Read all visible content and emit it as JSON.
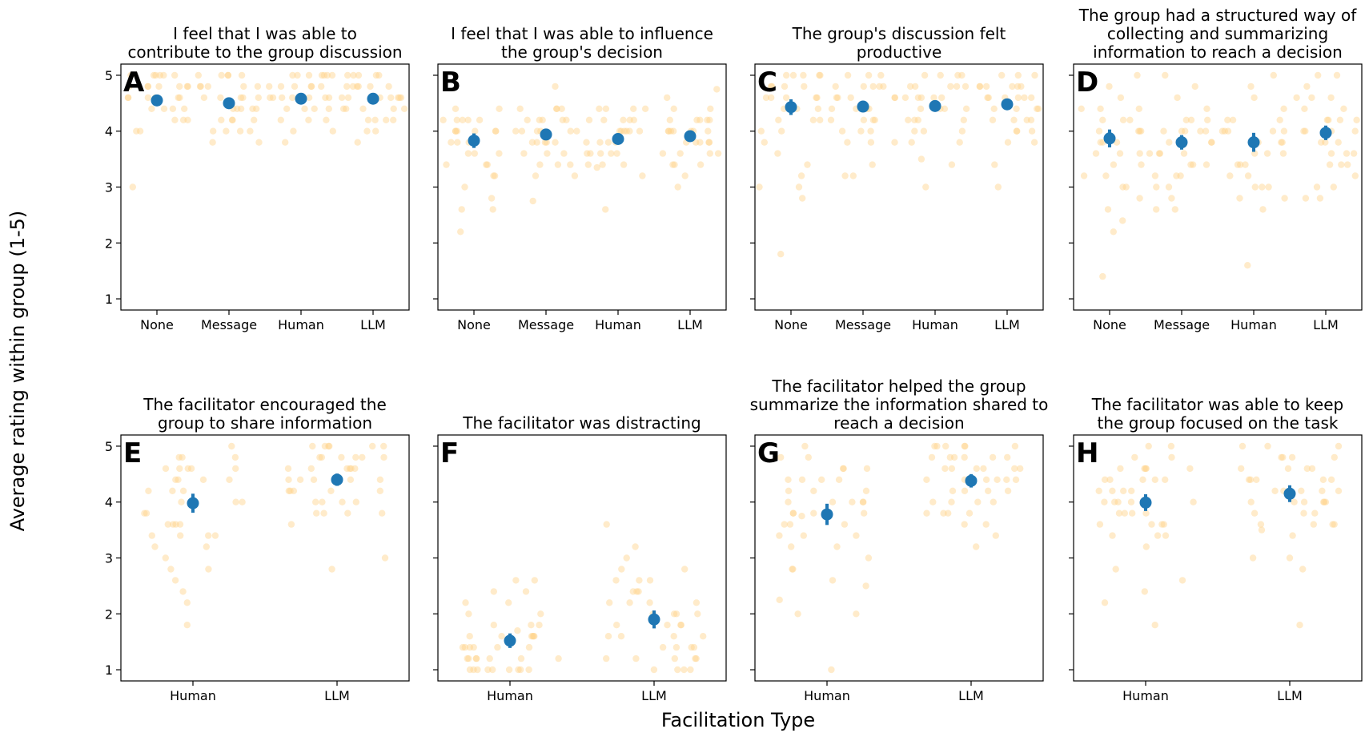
{
  "figure": {
    "ylabel": "Average rating within group (1-5)",
    "xlabel": "Facilitation Type",
    "colors": {
      "points": "#ffd38a",
      "mean": "#1f77b4"
    }
  },
  "chart_data": [
    {
      "type": "scatter",
      "letter": "A",
      "title": [
        "I feel that I was able to",
        "contribute to the group discussion"
      ],
      "categories": [
        "None",
        "Message",
        "Human",
        "LLM"
      ],
      "yticks": [
        "1",
        "2",
        "3",
        "4",
        "5"
      ],
      "ylim": [
        0.8,
        5.2
      ],
      "means": [
        4.55,
        4.5,
        4.58,
        4.58
      ],
      "errors": [
        0.07,
        0.07,
        0.07,
        0.06
      ],
      "points": [
        [
          4,
          4.2,
          4.4,
          4.4,
          4.6,
          4.6,
          4.6,
          4.6,
          4.8,
          4.8,
          4.8,
          4.8,
          5,
          5,
          5,
          5,
          4.2,
          4.4,
          4.6,
          4.8,
          4.8,
          5,
          5,
          4.4,
          4.6,
          4.8,
          4,
          4.2,
          3
        ],
        [
          3.8,
          4,
          4,
          4.2,
          4.2,
          4.4,
          4.4,
          4.4,
          4.6,
          4.6,
          4.6,
          4.8,
          4.8,
          4.8,
          5,
          5,
          5,
          4,
          4.2,
          4.4,
          4.6,
          4.8,
          5,
          3.8,
          4,
          4.4,
          4.6,
          5,
          4.2,
          4.8
        ],
        [
          3.8,
          4,
          4.2,
          4.2,
          4.4,
          4.4,
          4.6,
          4.6,
          4.6,
          4.6,
          4.8,
          4.8,
          4.8,
          5,
          5,
          5,
          5,
          4.4,
          4.6,
          4.8,
          5,
          4.2,
          4.6,
          4.8,
          5,
          4,
          4.4,
          4.6,
          4.8,
          5
        ],
        [
          3.8,
          4,
          4.2,
          4.2,
          4.4,
          4.4,
          4.4,
          4.6,
          4.6,
          4.6,
          4.6,
          4.8,
          4.8,
          4.8,
          4.8,
          5,
          5,
          5,
          4.2,
          4.4,
          4.6,
          4.8,
          5,
          4,
          4.4,
          4.6,
          4.8,
          5,
          4.2,
          4.6
        ]
      ]
    },
    {
      "type": "scatter",
      "letter": "B",
      "title": [
        "I feel that I was able to influence",
        "the group's decision"
      ],
      "categories": [
        "None",
        "Message",
        "Human",
        "LLM"
      ],
      "yticks": [
        "1",
        "2",
        "3",
        "4",
        "5"
      ],
      "ylim": [
        0.8,
        5.2
      ],
      "means": [
        3.83,
        3.94,
        3.86,
        3.91
      ],
      "errors": [
        0.13,
        0.1,
        0.1,
        0.09
      ],
      "points": [
        [
          2.2,
          2.6,
          2.6,
          2.8,
          3,
          3.2,
          3.2,
          3.4,
          3.4,
          3.6,
          3.6,
          3.8,
          3.8,
          4,
          4,
          4,
          4,
          4.2,
          4.2,
          4.2,
          4.4,
          4.4,
          3.6,
          3.8,
          4,
          4.2,
          3.4,
          3.8,
          4,
          4.2
        ],
        [
          2.75,
          3.2,
          3.2,
          3.4,
          3.4,
          3.6,
          3.6,
          3.8,
          3.8,
          3.8,
          4,
          4,
          4,
          4,
          4.2,
          4.2,
          4.2,
          4.4,
          4.4,
          4.4,
          4.8,
          3.6,
          3.8,
          4,
          4.2,
          4.4,
          3.4,
          3.8,
          4,
          4.2
        ],
        [
          2.6,
          3.2,
          3.4,
          3.4,
          3.6,
          3.6,
          3.6,
          3.8,
          3.8,
          3.8,
          4,
          4,
          4,
          4,
          4.2,
          4.2,
          4.2,
          4.4,
          4.4,
          3.35,
          3.6,
          3.8,
          4,
          4.2,
          4.4,
          3.4,
          3.6,
          4,
          4.2,
          4.4
        ],
        [
          3,
          3.2,
          3.4,
          3.4,
          3.6,
          3.6,
          3.6,
          3.8,
          3.8,
          3.8,
          4,
          4,
          4,
          4,
          4,
          4.2,
          4.2,
          4.2,
          4.4,
          4.4,
          4.6,
          4.75,
          3.6,
          3.8,
          4,
          4.2,
          3.4,
          3.8,
          4,
          4.2
        ]
      ]
    },
    {
      "type": "scatter",
      "letter": "C",
      "title": [
        "The group's discussion felt",
        "productive"
      ],
      "categories": [
        "None",
        "Message",
        "Human",
        "LLM"
      ],
      "yticks": [
        "1",
        "2",
        "3",
        "4",
        "5"
      ],
      "ylim": [
        0.8,
        5.2
      ],
      "means": [
        4.43,
        4.44,
        4.45,
        4.48
      ],
      "errors": [
        0.14,
        0.09,
        0.09,
        0.08
      ],
      "points": [
        [
          1.8,
          2.8,
          3,
          3,
          3.2,
          3.4,
          3.6,
          3.8,
          4,
          4,
          4.2,
          4.2,
          4.4,
          4.4,
          4.6,
          4.6,
          4.6,
          4.8,
          4.8,
          4.8,
          5,
          5,
          5,
          5,
          4.4,
          4.6,
          4.8,
          5,
          4.2,
          4.6
        ],
        [
          3.2,
          3.2,
          3.4,
          3.8,
          3.8,
          4,
          4,
          4.2,
          4.2,
          4.4,
          4.4,
          4.4,
          4.6,
          4.6,
          4.6,
          4.8,
          4.8,
          4.8,
          5,
          5,
          4,
          4.2,
          4.6,
          4.8,
          5,
          3.8,
          4.4,
          4.6,
          4.8,
          4.2
        ],
        [
          3,
          3.4,
          3.5,
          3.8,
          4,
          4,
          4.2,
          4.2,
          4.4,
          4.4,
          4.4,
          4.6,
          4.6,
          4.6,
          4.8,
          4.8,
          4.8,
          5,
          5,
          5,
          4,
          4.2,
          4.6,
          4.8,
          5,
          3.8,
          4.4,
          4.6,
          4.8,
          4.2
        ],
        [
          3,
          3.4,
          3.8,
          3.8,
          4,
          4,
          4.2,
          4.2,
          4.4,
          4.4,
          4.4,
          4.6,
          4.6,
          4.6,
          4.8,
          4.8,
          4.8,
          4.8,
          5,
          5,
          5,
          4,
          4.2,
          4.6,
          4.8,
          4.4,
          4.6,
          4.8,
          4.2,
          4.6
        ]
      ]
    },
    {
      "type": "scatter",
      "letter": "D",
      "title": [
        "The group had a structured way of",
        "collecting and summarizing",
        "information to reach a decision"
      ],
      "categories": [
        "None",
        "Message",
        "Human",
        "LLM"
      ],
      "yticks": [
        "1",
        "2",
        "3",
        "4",
        "5"
      ],
      "ylim": [
        0.8,
        5.2
      ],
      "means": [
        3.87,
        3.8,
        3.8,
        3.97
      ],
      "errors": [
        0.16,
        0.13,
        0.17,
        0.13
      ],
      "points": [
        [
          1.4,
          2.2,
          2.4,
          2.6,
          2.8,
          3,
          3,
          3.2,
          3.4,
          3.4,
          3.6,
          3.6,
          3.8,
          3.8,
          4,
          4,
          4,
          4.2,
          4.2,
          4.4,
          4.4,
          4.6,
          4.8,
          5,
          3.6,
          4,
          4.2,
          3.2,
          3.8,
          4.4
        ],
        [
          2.6,
          2.6,
          2.8,
          3,
          3,
          3.2,
          3.2,
          3.4,
          3.4,
          3.6,
          3.6,
          3.8,
          3.8,
          4,
          4,
          4,
          4.2,
          4.2,
          4.4,
          4.6,
          4.8,
          5,
          3.4,
          3.6,
          3.8,
          4,
          4.2,
          3.2,
          3.6,
          4
        ],
        [
          1.6,
          2.6,
          2.8,
          3,
          3,
          3.2,
          3.2,
          3.4,
          3.4,
          3.6,
          3.6,
          3.8,
          3.8,
          4,
          4,
          4,
          4.2,
          4.2,
          4.4,
          4.6,
          4.8,
          5,
          2.8,
          3.4,
          3.6,
          4,
          4.2,
          3,
          3.8,
          4
        ],
        [
          2.8,
          2.8,
          3,
          3,
          3.2,
          3.4,
          3.4,
          3.6,
          3.6,
          3.8,
          3.8,
          4,
          4,
          4,
          4.2,
          4.2,
          4.4,
          4.4,
          4.6,
          4.6,
          4.8,
          5,
          5,
          3.6,
          4,
          4.2,
          4.6,
          3.4,
          3.8,
          4.2
        ]
      ]
    },
    {
      "type": "scatter",
      "letter": "E",
      "title": [
        "The facilitator encouraged the",
        "group to share information"
      ],
      "categories": [
        "Human",
        "LLM"
      ],
      "yticks": [
        "1",
        "2",
        "3",
        "4",
        "5"
      ],
      "ylim": [
        0.8,
        5.2
      ],
      "means": [
        3.98,
        4.4
      ],
      "errors": [
        0.17,
        0.11
      ],
      "points": [
        [
          1.8,
          2.2,
          2.4,
          2.6,
          2.8,
          2.8,
          3,
          3.2,
          3.2,
          3.4,
          3.4,
          3.4,
          3.6,
          3.6,
          3.6,
          3.8,
          3.8,
          4,
          4,
          4,
          4,
          4.2,
          4.2,
          4.4,
          4.4,
          4.4,
          4.6,
          4.6,
          4.6,
          4.8,
          4.8,
          4.8,
          5,
          3.6,
          4,
          4.4,
          4.6,
          3.4,
          4.2,
          4.6
        ],
        [
          2.8,
          3,
          3.6,
          3.8,
          3.8,
          3.8,
          4,
          4,
          4,
          4.2,
          4.2,
          4.2,
          4.2,
          4.4,
          4.4,
          4.4,
          4.4,
          4.6,
          4.6,
          4.6,
          4.6,
          4.8,
          4.8,
          4.8,
          4.8,
          5,
          5,
          5,
          5,
          5,
          4,
          4.2,
          4.4,
          4.6,
          4.8,
          3.8,
          4.4,
          4.6,
          4.8,
          5
        ]
      ]
    },
    {
      "type": "scatter",
      "letter": "F",
      "title": [
        "The facilitator was distracting"
      ],
      "categories": [
        "Human",
        "LLM"
      ],
      "yticks": [
        "1",
        "2",
        "3",
        "4",
        "5"
      ],
      "ylim": [
        0.8,
        5.2
      ],
      "means": [
        1.52,
        1.9
      ],
      "errors": [
        0.13,
        0.16
      ],
      "points": [
        [
          1,
          1,
          1,
          1,
          1,
          1,
          1,
          1,
          1,
          1.2,
          1.2,
          1.2,
          1.2,
          1.2,
          1.2,
          1.2,
          1.4,
          1.4,
          1.4,
          1.4,
          1.4,
          1.4,
          1.6,
          1.6,
          1.6,
          1.6,
          1.6,
          1.6,
          1.7,
          1.8,
          1.8,
          1.8,
          2,
          2,
          2.2,
          2.2,
          2.4,
          2.4,
          2.6,
          2.6
        ],
        [
          1,
          1,
          1,
          1,
          1.2,
          1.2,
          1.2,
          1.2,
          1.2,
          1.4,
          1.4,
          1.4,
          1.4,
          1.6,
          1.6,
          1.6,
          1.6,
          1.8,
          1.8,
          1.8,
          1.8,
          2,
          2,
          2,
          2,
          2.2,
          2.2,
          2.2,
          2.4,
          2.4,
          2.4,
          2.6,
          2.6,
          2.6,
          2.8,
          2.8,
          3,
          3.2,
          3.6,
          2.2
        ]
      ]
    },
    {
      "type": "scatter",
      "letter": "G",
      "title": [
        "The facilitator helped the group",
        "summarize the information shared to",
        "reach a decision"
      ],
      "categories": [
        "Human",
        "LLM"
      ],
      "yticks": [
        "1",
        "2",
        "3",
        "4",
        "5"
      ],
      "ylim": [
        0.8,
        5.2
      ],
      "means": [
        3.78,
        4.38
      ],
      "errors": [
        0.19,
        0.12
      ],
      "points": [
        [
          1,
          2,
          2,
          2.25,
          2.5,
          2.6,
          2.8,
          2.8,
          3,
          3.2,
          3.2,
          3.4,
          3.4,
          3.6,
          3.6,
          3.6,
          3.8,
          3.8,
          3.8,
          4,
          4,
          4,
          4.2,
          4.2,
          4.4,
          4.4,
          4.4,
          4.6,
          4.6,
          4.6,
          4.8,
          4.8,
          5,
          3.75,
          4,
          4.2,
          3.8,
          3.4,
          4.4,
          4
        ],
        [
          3.2,
          3.4,
          3.6,
          3.6,
          3.8,
          3.8,
          3.8,
          4,
          4,
          4,
          4.2,
          4.2,
          4.2,
          4.4,
          4.4,
          4.4,
          4.4,
          4.6,
          4.6,
          4.6,
          4.6,
          4.8,
          4.8,
          4.8,
          4.8,
          5,
          5,
          5,
          5,
          5,
          4,
          4.2,
          4.4,
          4.6,
          4.8,
          3.8,
          4.4,
          4.6,
          4.8,
          5
        ]
      ]
    },
    {
      "type": "scatter",
      "letter": "H",
      "title": [
        "The facilitator was able to keep",
        "the group focused on the task"
      ],
      "categories": [
        "Human",
        "LLM"
      ],
      "yticks": [
        "1",
        "2",
        "3",
        "4",
        "5"
      ],
      "ylim": [
        0.8,
        5.2
      ],
      "means": [
        3.99,
        4.15
      ],
      "errors": [
        0.15,
        0.15
      ],
      "points": [
        [
          1.8,
          2.2,
          2.4,
          2.6,
          2.8,
          3.2,
          3.4,
          3.4,
          3.6,
          3.6,
          3.6,
          3.8,
          3.8,
          3.8,
          4,
          4,
          4,
          4.2,
          4.2,
          4.2,
          4.4,
          4.4,
          4.4,
          4.6,
          4.6,
          4.6,
          4.8,
          4.8,
          5,
          5,
          3.8,
          4,
          4.4,
          3.6,
          4.2,
          4.6,
          4,
          3.4,
          4.4,
          4.6
        ],
        [
          1.8,
          2.8,
          3,
          3,
          3.4,
          3.5,
          3.6,
          3.6,
          3.6,
          3.8,
          3.8,
          3.8,
          4,
          4,
          4,
          4,
          4.2,
          4.2,
          4.2,
          4.4,
          4.4,
          4.4,
          4.4,
          4.6,
          4.6,
          4.6,
          4.8,
          4.8,
          4.8,
          5,
          5,
          5,
          4,
          4.2,
          4.4,
          3.6,
          4,
          4.6,
          4.8,
          4.2
        ]
      ]
    }
  ]
}
